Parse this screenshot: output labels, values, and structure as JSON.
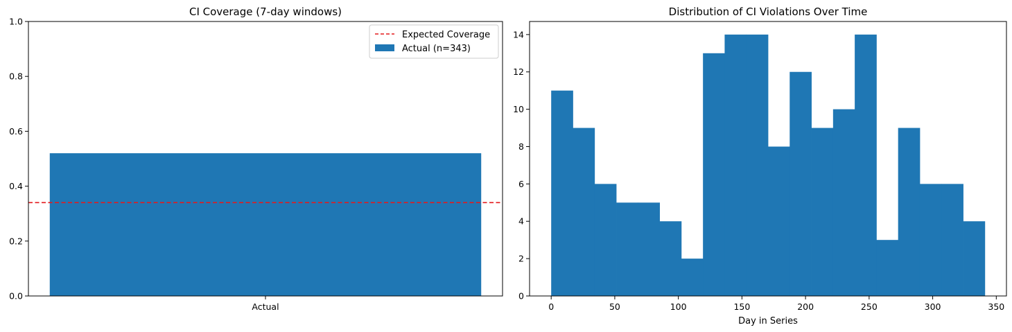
{
  "chart_data": [
    {
      "type": "bar",
      "title": "CI Coverage (7-day windows)",
      "xlabel": "",
      "ylabel": "",
      "categories": [
        "Actual"
      ],
      "values": [
        0.52
      ],
      "ylim": [
        0,
        1.0
      ],
      "yticks": [
        "0.0",
        "0.2",
        "0.4",
        "0.6",
        "0.8",
        "1.0"
      ],
      "reference_line": {
        "y": 0.34,
        "style": "dashed",
        "color": "#e31a1c",
        "label": "Expected Coverage"
      },
      "series": [
        {
          "name": "Actual (n=343)",
          "color": "#1f77b4"
        }
      ],
      "legend_location": "top-right",
      "grid": false
    },
    {
      "type": "bar",
      "histogram": true,
      "title": "Distribution of CI Violations Over Time",
      "xlabel": "Day in Series",
      "ylabel": "",
      "bin_edges": [
        0,
        17.05,
        34.1,
        51.15,
        68.2,
        85.25,
        102.3,
        119.35,
        136.4,
        153.45,
        170.5,
        187.55,
        204.6,
        221.65,
        238.7,
        255.75,
        272.8,
        289.85,
        306.9,
        323.95,
        341
      ],
      "values": [
        11,
        9,
        6,
        5,
        5,
        4,
        2,
        13,
        14,
        14,
        8,
        12,
        9,
        10,
        14,
        3,
        9,
        6,
        6,
        4
      ],
      "xlim": [
        -17,
        358
      ],
      "ylim": [
        0,
        14.7
      ],
      "xticks": [
        "0",
        "50",
        "100",
        "150",
        "200",
        "250",
        "300",
        "350"
      ],
      "yticks": [
        "0",
        "2",
        "4",
        "6",
        "8",
        "10",
        "12",
        "14"
      ],
      "color": "#1f77b4",
      "grid": false
    }
  ]
}
